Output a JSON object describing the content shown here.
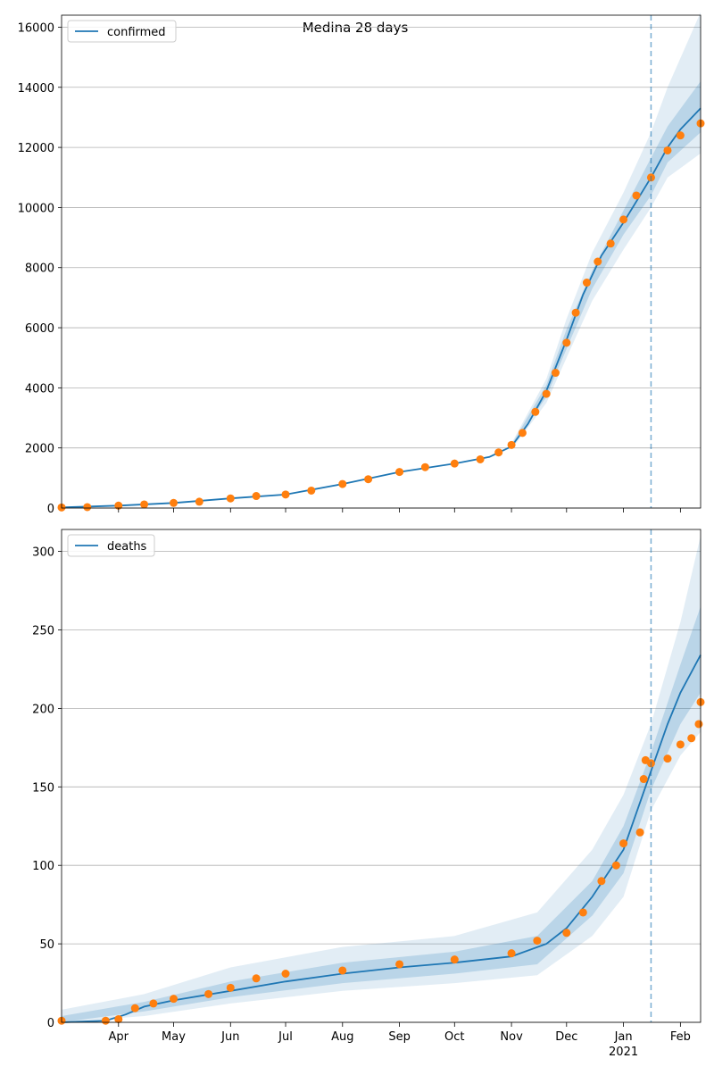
{
  "title": "Medina 28 days",
  "colors": {
    "model_line": "#1f77b4",
    "observed": "#ff7f0e",
    "band": "#1f77b4",
    "grid": "#b0b0b0",
    "forecast_marker": "#1f77b4"
  },
  "x_axis": {
    "months": [
      {
        "label": "Apr",
        "date": "2020-04-01"
      },
      {
        "label": "May",
        "date": "2020-05-01"
      },
      {
        "label": "Jun",
        "date": "2020-06-01"
      },
      {
        "label": "Jul",
        "date": "2020-07-01"
      },
      {
        "label": "Aug",
        "date": "2020-08-01"
      },
      {
        "label": "Sep",
        "date": "2020-09-01"
      },
      {
        "label": "Oct",
        "date": "2020-10-01"
      },
      {
        "label": "Nov",
        "date": "2020-11-01"
      },
      {
        "label": "Dec",
        "date": "2020-12-01"
      },
      {
        "label": "Jan",
        "date": "2021-01-01"
      },
      {
        "label": "Feb",
        "date": "2021-02-01"
      }
    ],
    "year_label": "2021",
    "range": [
      "2020-03-01",
      "2021-02-12"
    ],
    "forecast_start": "2021-01-16"
  },
  "chart_data": [
    {
      "type": "line",
      "legend": "confirmed",
      "legend_position": "upper-left",
      "grid": "horizontal",
      "ylim": [
        0,
        16400
      ],
      "yticks": [
        0,
        2000,
        4000,
        6000,
        8000,
        10000,
        12000,
        14000,
        16000
      ],
      "model_curve": [
        [
          "2020-03-01",
          20
        ],
        [
          "2020-04-01",
          80
        ],
        [
          "2020-05-01",
          170
        ],
        [
          "2020-06-01",
          320
        ],
        [
          "2020-07-01",
          450
        ],
        [
          "2020-08-01",
          800
        ],
        [
          "2020-09-01",
          1200
        ],
        [
          "2020-10-01",
          1480
        ],
        [
          "2020-10-20",
          1700
        ],
        [
          "2020-11-01",
          2050
        ],
        [
          "2020-11-10",
          2800
        ],
        [
          "2020-11-20",
          3900
        ],
        [
          "2020-12-01",
          5600
        ],
        [
          "2020-12-10",
          7100
        ],
        [
          "2020-12-20",
          8400
        ],
        [
          "2021-01-01",
          9500
        ],
        [
          "2021-01-16",
          11000
        ],
        [
          "2021-01-25",
          12000
        ],
        [
          "2021-02-01",
          12600
        ],
        [
          "2021-02-12",
          13300
        ]
      ],
      "band_outer": {
        "upper": [
          [
            "2020-11-01",
            2150
          ],
          [
            "2020-11-20",
            4300
          ],
          [
            "2020-12-01",
            6300
          ],
          [
            "2020-12-15",
            8500
          ],
          [
            "2021-01-01",
            10500
          ],
          [
            "2021-01-16",
            12500
          ],
          [
            "2021-01-25",
            14000
          ],
          [
            "2021-02-12",
            16500
          ]
        ],
        "lower": [
          [
            "2020-11-01",
            1950
          ],
          [
            "2020-11-20",
            3500
          ],
          [
            "2020-12-01",
            5000
          ],
          [
            "2020-12-15",
            6900
          ],
          [
            "2021-01-01",
            8600
          ],
          [
            "2021-01-16",
            10000
          ],
          [
            "2021-01-25",
            11000
          ],
          [
            "2021-02-12",
            11800
          ]
        ]
      },
      "band_inner": {
        "upper": [
          [
            "2020-11-01",
            2100
          ],
          [
            "2020-11-20",
            4100
          ],
          [
            "2020-12-01",
            5950
          ],
          [
            "2020-12-15",
            7900
          ],
          [
            "2021-01-01",
            9900
          ],
          [
            "2021-01-16",
            11650
          ],
          [
            "2021-01-25",
            12700
          ],
          [
            "2021-02-12",
            14200
          ]
        ],
        "lower": [
          [
            "2020-11-01",
            2000
          ],
          [
            "2020-11-20",
            3700
          ],
          [
            "2020-12-01",
            5300
          ],
          [
            "2020-12-15",
            7300
          ],
          [
            "2021-01-01",
            9100
          ],
          [
            "2021-01-16",
            10400
          ],
          [
            "2021-01-25",
            11500
          ],
          [
            "2021-02-12",
            12500
          ]
        ]
      },
      "observed": [
        [
          "2020-03-01",
          20
        ],
        [
          "2020-03-15",
          30
        ],
        [
          "2020-04-01",
          80
        ],
        [
          "2020-04-15",
          120
        ],
        [
          "2020-05-01",
          170
        ],
        [
          "2020-05-15",
          210
        ],
        [
          "2020-06-01",
          320
        ],
        [
          "2020-06-15",
          400
        ],
        [
          "2020-07-01",
          450
        ],
        [
          "2020-07-15",
          580
        ],
        [
          "2020-08-01",
          800
        ],
        [
          "2020-08-15",
          960
        ],
        [
          "2020-09-01",
          1200
        ],
        [
          "2020-09-15",
          1360
        ],
        [
          "2020-10-01",
          1480
        ],
        [
          "2020-10-15",
          1620
        ],
        [
          "2020-10-25",
          1850
        ],
        [
          "2020-11-01",
          2100
        ],
        [
          "2020-11-07",
          2500
        ],
        [
          "2020-11-14",
          3200
        ],
        [
          "2020-11-20",
          3800
        ],
        [
          "2020-11-25",
          4500
        ],
        [
          "2020-12-01",
          5500
        ],
        [
          "2020-12-06",
          6500
        ],
        [
          "2020-12-12",
          7500
        ],
        [
          "2020-12-18",
          8200
        ],
        [
          "2020-12-25",
          8800
        ],
        [
          "2021-01-01",
          9600
        ],
        [
          "2021-01-08",
          10400
        ],
        [
          "2021-01-16",
          11000
        ],
        [
          "2021-01-25",
          11900
        ],
        [
          "2021-02-01",
          12400
        ],
        [
          "2021-02-12",
          12800
        ]
      ]
    },
    {
      "type": "line",
      "legend": "deaths",
      "legend_position": "upper-left",
      "grid": "horizontal",
      "ylim": [
        0,
        314
      ],
      "yticks": [
        0,
        50,
        100,
        150,
        200,
        250,
        300
      ],
      "model_curve": [
        [
          "2020-03-01",
          0
        ],
        [
          "2020-03-25",
          1
        ],
        [
          "2020-04-05",
          5
        ],
        [
          "2020-04-15",
          10
        ],
        [
          "2020-05-01",
          14
        ],
        [
          "2020-06-01",
          20
        ],
        [
          "2020-07-01",
          26
        ],
        [
          "2020-08-01",
          31
        ],
        [
          "2020-09-01",
          35
        ],
        [
          "2020-10-01",
          38
        ],
        [
          "2020-11-01",
          42
        ],
        [
          "2020-11-20",
          50
        ],
        [
          "2020-12-01",
          60
        ],
        [
          "2020-12-15",
          80
        ],
        [
          "2021-01-01",
          110
        ],
        [
          "2021-01-16",
          160
        ],
        [
          "2021-01-25",
          190
        ],
        [
          "2021-02-01",
          210
        ],
        [
          "2021-02-12",
          234
        ]
      ],
      "band_outer": {
        "upper": [
          [
            "2020-03-01",
            8
          ],
          [
            "2020-04-15",
            18
          ],
          [
            "2020-06-01",
            35
          ],
          [
            "2020-08-01",
            48
          ],
          [
            "2020-10-01",
            55
          ],
          [
            "2020-11-15",
            70
          ],
          [
            "2020-12-15",
            110
          ],
          [
            "2021-01-01",
            145
          ],
          [
            "2021-01-16",
            190
          ],
          [
            "2021-02-01",
            255
          ],
          [
            "2021-02-12",
            310
          ]
        ],
        "lower": [
          [
            "2020-03-01",
            0
          ],
          [
            "2020-04-15",
            4
          ],
          [
            "2020-06-01",
            12
          ],
          [
            "2020-08-01",
            20
          ],
          [
            "2020-10-01",
            25
          ],
          [
            "2020-11-15",
            30
          ],
          [
            "2020-12-15",
            55
          ],
          [
            "2021-01-01",
            80
          ],
          [
            "2021-01-16",
            135
          ],
          [
            "2021-02-01",
            170
          ],
          [
            "2021-02-12",
            185
          ]
        ]
      },
      "band_inner": {
        "upper": [
          [
            "2020-03-01",
            4
          ],
          [
            "2020-04-15",
            13
          ],
          [
            "2020-06-01",
            26
          ],
          [
            "2020-08-01",
            38
          ],
          [
            "2020-10-01",
            45
          ],
          [
            "2020-11-15",
            55
          ],
          [
            "2020-12-15",
            90
          ],
          [
            "2021-01-01",
            125
          ],
          [
            "2021-01-16",
            172
          ],
          [
            "2021-02-01",
            228
          ],
          [
            "2021-02-12",
            265
          ]
        ],
        "lower": [
          [
            "2020-03-01",
            0
          ],
          [
            "2020-04-15",
            7
          ],
          [
            "2020-06-01",
            16
          ],
          [
            "2020-08-01",
            25
          ],
          [
            "2020-10-01",
            31
          ],
          [
            "2020-11-15",
            37
          ],
          [
            "2020-12-15",
            68
          ],
          [
            "2021-01-01",
            95
          ],
          [
            "2021-01-16",
            148
          ],
          [
            "2021-02-01",
            190
          ],
          [
            "2021-02-12",
            210
          ]
        ]
      },
      "observed": [
        [
          "2020-03-01",
          1
        ],
        [
          "2020-03-25",
          1
        ],
        [
          "2020-04-01",
          2
        ],
        [
          "2020-04-10",
          9
        ],
        [
          "2020-04-20",
          12
        ],
        [
          "2020-05-01",
          15
        ],
        [
          "2020-05-20",
          18
        ],
        [
          "2020-06-01",
          22
        ],
        [
          "2020-06-15",
          28
        ],
        [
          "2020-07-01",
          31
        ],
        [
          "2020-08-01",
          33
        ],
        [
          "2020-09-01",
          37
        ],
        [
          "2020-10-01",
          40
        ],
        [
          "2020-11-01",
          44
        ],
        [
          "2020-11-15",
          52
        ],
        [
          "2020-12-01",
          57
        ],
        [
          "2020-12-10",
          70
        ],
        [
          "2020-12-20",
          90
        ],
        [
          "2020-12-28",
          100
        ],
        [
          "2021-01-01",
          114
        ],
        [
          "2021-01-10",
          121
        ],
        [
          "2021-01-12",
          155
        ],
        [
          "2021-01-13",
          167
        ],
        [
          "2021-01-16",
          165
        ],
        [
          "2021-01-25",
          168
        ],
        [
          "2021-02-01",
          177
        ],
        [
          "2021-02-07",
          181
        ],
        [
          "2021-02-11",
          190
        ],
        [
          "2021-02-12",
          204
        ]
      ]
    }
  ]
}
